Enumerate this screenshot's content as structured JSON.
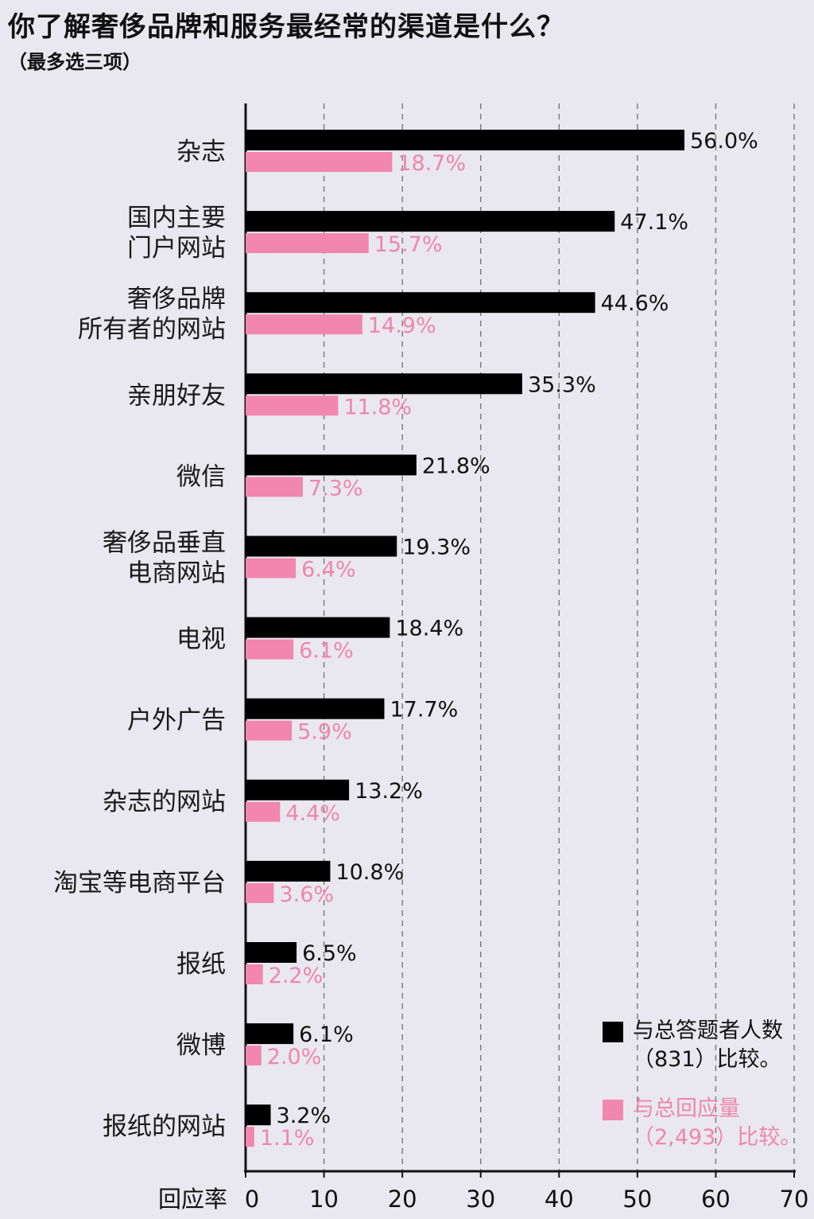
{
  "title": "你了解奢侈品牌和服务最经常的渠道是什么？",
  "subtitle": "（最多选三项）",
  "colors": {
    "black_series": "#000000",
    "pink_series": "#f287ad",
    "background": "#e9e8ee"
  },
  "legend": {
    "black": {
      "line1": "与总答题者人数",
      "line2": "（831）比较。"
    },
    "pink": {
      "line1": "与总回应量",
      "line2": "（2,493）比较。"
    }
  },
  "chart_data": {
    "type": "bar",
    "orientation": "horizontal",
    "title": "你了解奢侈品牌和服务最经常的渠道是什么？",
    "subtitle": "（最多选三项）",
    "xlabel": "回应率",
    "xlim": [
      0,
      70
    ],
    "xticks": [
      0,
      10,
      20,
      30,
      40,
      50,
      60,
      70
    ],
    "grid": "vertical dashed",
    "legend_position": "bottom-right",
    "categories": [
      [
        "杂志"
      ],
      [
        "国内主要",
        "门户网站"
      ],
      [
        "奢侈品牌",
        "所有者的网站"
      ],
      [
        "亲朋好友"
      ],
      [
        "微信"
      ],
      [
        "奢侈品垂直",
        "电商网站"
      ],
      [
        "电视"
      ],
      [
        "户外广告"
      ],
      [
        "杂志的网站"
      ],
      [
        "淘宝等电商平台"
      ],
      [
        "报纸"
      ],
      [
        "微博"
      ],
      [
        "报纸的网站"
      ]
    ],
    "series": [
      {
        "name": "与总答题者人数（831）比较。",
        "color": "#000000",
        "values": [
          56.0,
          47.1,
          44.6,
          35.3,
          21.8,
          19.3,
          18.4,
          17.7,
          13.2,
          10.8,
          6.5,
          6.1,
          3.2
        ],
        "labels": [
          "56.0%",
          "47.1%",
          "44.6%",
          "35.3%",
          "21.8%",
          "19.3%",
          "18.4%",
          "17.7%",
          "13.2%",
          "10.8%",
          "6.5%",
          "6.1%",
          "3.2%"
        ]
      },
      {
        "name": "与总回应量（2,493）比较。",
        "color": "#f287ad",
        "values": [
          18.7,
          15.7,
          14.9,
          11.8,
          7.3,
          6.4,
          6.1,
          5.9,
          4.4,
          3.6,
          2.2,
          2.0,
          1.1
        ],
        "labels": [
          "18.7%",
          "15.7%",
          "14.9%",
          "11.8%",
          "7.3%",
          "6.4%",
          "6.1%",
          "5.9%",
          "4.4%",
          "3.6%",
          "2.2%",
          "2.0%",
          "1.1%"
        ]
      }
    ]
  }
}
